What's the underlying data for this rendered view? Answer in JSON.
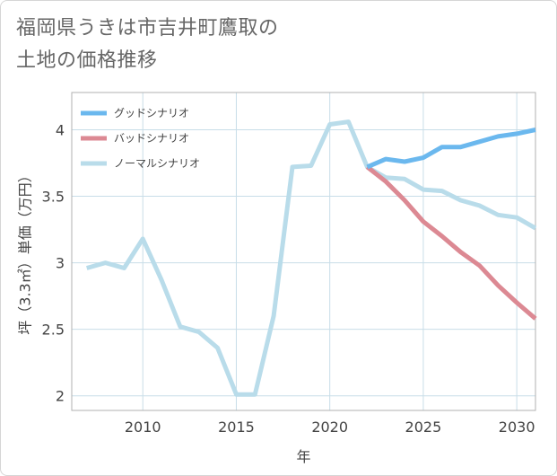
{
  "title": {
    "line1": "福岡県うきは市吉井町鷹取の",
    "line2": "土地の価格推移"
  },
  "chart_data": {
    "type": "line",
    "xlabel": "年",
    "ylabel": "坪（3.3㎡）単価（万円）",
    "xlim": [
      2006.2,
      2031
    ],
    "ylim": [
      1.89,
      4.28
    ],
    "x_ticks": [
      2010,
      2015,
      2020,
      2025,
      2030
    ],
    "y_ticks": [
      2,
      2.5,
      3,
      3.5,
      4
    ],
    "x_tick_labels": [
      "2010",
      "2015",
      "2020",
      "2025",
      "2030"
    ],
    "y_tick_labels": [
      "2",
      "2.5",
      "3",
      "3.5",
      "4"
    ],
    "grid": true,
    "legend_position": "top-left",
    "series": [
      {
        "name": "グッドシナリオ",
        "color": "#6bb8ee",
        "x": [
          2022,
          2023,
          2024,
          2025,
          2026,
          2027,
          2028,
          2029,
          2030,
          2031
        ],
        "y": [
          3.72,
          3.78,
          3.76,
          3.79,
          3.87,
          3.87,
          3.91,
          3.95,
          3.97,
          4.0
        ]
      },
      {
        "name": "バッドシナリオ",
        "color": "#dc8993",
        "x": [
          2022,
          2023,
          2024,
          2025,
          2026,
          2027,
          2028,
          2029,
          2030,
          2031
        ],
        "y": [
          3.72,
          3.61,
          3.47,
          3.31,
          3.2,
          3.08,
          2.98,
          2.83,
          2.7,
          2.58
        ]
      },
      {
        "name": "ノーマルシナリオ",
        "color": "#b9dcea",
        "x": [
          2007,
          2008,
          2009,
          2010,
          2011,
          2012,
          2013,
          2014,
          2015,
          2016,
          2017,
          2018,
          2019,
          2020,
          2021,
          2022,
          2023,
          2024,
          2025,
          2026,
          2027,
          2028,
          2029,
          2030,
          2031
        ],
        "y": [
          2.96,
          3.0,
          2.96,
          3.18,
          2.87,
          2.52,
          2.48,
          2.36,
          2.01,
          2.01,
          2.6,
          3.72,
          3.73,
          4.04,
          4.06,
          3.72,
          3.64,
          3.63,
          3.55,
          3.54,
          3.47,
          3.43,
          3.36,
          3.34,
          3.26
        ]
      }
    ]
  }
}
